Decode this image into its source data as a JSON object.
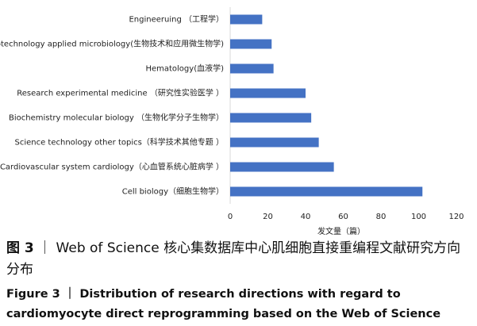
{
  "chart_data": {
    "type": "hbar",
    "categories": [
      "Engineeruing （工程学）",
      "Biotechnology applied microbiology(生物技术和应用微生物学)",
      "Hematology(血液学)",
      "Research experimental medicine （研究性实验医学 ）",
      "Biochemistry molecular biology （生物化学分子生物学）",
      "Science technology other topics（科学技术其他专题 ）",
      "Cardiovascular system cardiology（心血管系统心脏病学 ）",
      "Cell biology（细胞生物学）"
    ],
    "values": [
      17,
      22,
      23,
      40,
      43,
      47,
      55,
      102
    ],
    "color": "#4472c4",
    "xlim": [
      0,
      120
    ],
    "xticks": [
      0,
      20,
      40,
      60,
      80,
      100,
      120
    ],
    "x_label": "发文量（篇）",
    "grid": false,
    "caption_zh_label": "图 3",
    "caption_zh_text": "｜ Web of Science 核心集数据库中心肌细胞直接重编程文献研究方向分布",
    "caption_en_label": "Figure 3",
    "caption_en_text": "｜ Distribution of research directions with regard to cardiomyocyte direct reprogramming based on the Web of Science"
  }
}
